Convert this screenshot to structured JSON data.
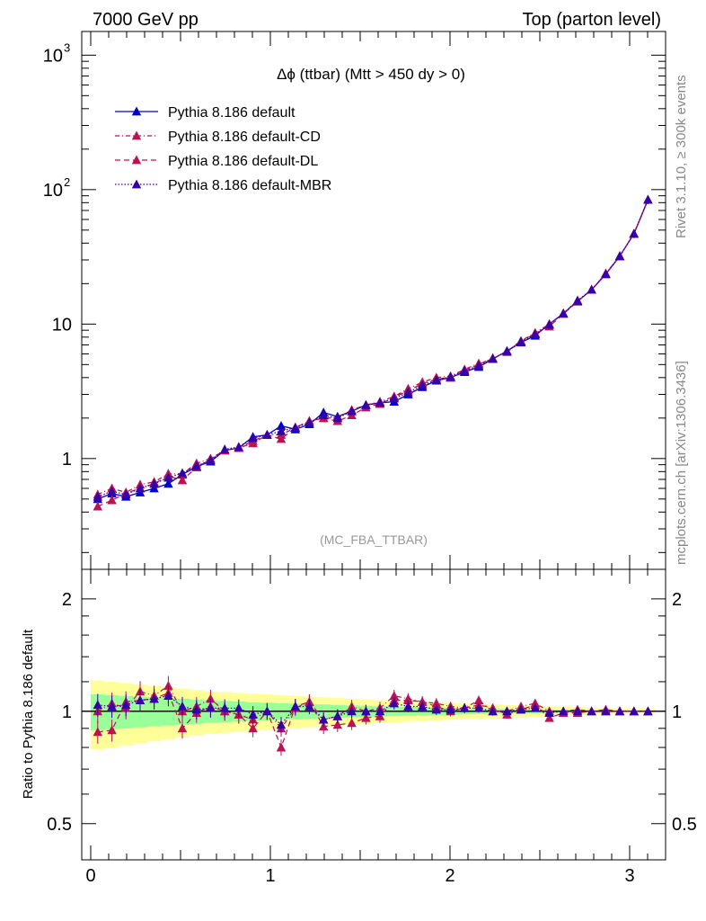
{
  "header": {
    "left": "7000 GeV pp",
    "right": "Top (parton level)"
  },
  "side_labels": {
    "rivet": "Rivet 3.1.10, ≥ 300k events",
    "source": "mcplots.cern.ch [arXiv:1306.3436]"
  },
  "chart_data": [
    {
      "type": "line",
      "panel": "main",
      "title": "Δϕ (ttbar) (Mtt > 450 dy > 0)",
      "watermark": "(MC_FBA_TTBAR)",
      "yscale": "log",
      "ylim": [
        0.15,
        1500
      ],
      "xlim": [
        -0.05,
        3.2
      ],
      "ytick_labels": [
        {
          "value": 1000,
          "mant": "10",
          "exp": "3"
        },
        {
          "value": 100,
          "mant": "10",
          "exp": "2"
        },
        {
          "value": 10,
          "mant": "10",
          "exp": ""
        },
        {
          "value": 1,
          "mant": "1",
          "exp": ""
        }
      ],
      "legend_position": "top-left",
      "x": [
        0.039,
        0.118,
        0.196,
        0.275,
        0.353,
        0.432,
        0.51,
        0.589,
        0.667,
        0.746,
        0.824,
        0.903,
        0.982,
        1.06,
        1.139,
        1.217,
        1.296,
        1.374,
        1.453,
        1.532,
        1.61,
        1.689,
        1.767,
        1.846,
        1.924,
        2.003,
        2.081,
        2.16,
        2.238,
        2.317,
        2.395,
        2.474,
        2.553,
        2.631,
        2.71,
        2.788,
        2.867,
        2.945,
        3.024,
        3.102
      ],
      "series": [
        {
          "name": "Pythia 8.186 default",
          "color": "#0000cc",
          "dash": "",
          "y": [
            0.5,
            0.55,
            0.52,
            0.56,
            0.6,
            0.65,
            0.76,
            0.87,
            0.95,
            1.15,
            1.2,
            1.45,
            1.5,
            1.75,
            1.65,
            1.8,
            2.2,
            2.05,
            2.25,
            2.5,
            2.6,
            2.65,
            3.0,
            3.4,
            3.8,
            4.0,
            4.4,
            4.8,
            5.5,
            6.3,
            7.3,
            8.2,
            10.0,
            12.0,
            14.8,
            18.0,
            23.5,
            32.0,
            47.0,
            84.0
          ]
        },
        {
          "name": "Pythia 8.186 default-CD",
          "color": "#bb1155",
          "dash": "5,3,1,3",
          "y": [
            0.54,
            0.6,
            0.56,
            0.64,
            0.67,
            0.77,
            0.77,
            0.92,
            1.0,
            1.15,
            1.2,
            1.35,
            1.5,
            1.5,
            1.7,
            1.9,
            2.0,
            2.0,
            2.3,
            2.5,
            2.65,
            2.9,
            3.3,
            3.7,
            4.0,
            4.1,
            4.6,
            5.1,
            5.5,
            6.3,
            7.5,
            8.6,
            10.0,
            12.0,
            15.0,
            18.0,
            23.5,
            32.0,
            47.0,
            84.0
          ]
        },
        {
          "name": "Pythia 8.186 default-DL",
          "color": "#bb1155",
          "dash": "6,4",
          "y": [
            0.44,
            0.49,
            0.55,
            0.6,
            0.65,
            0.74,
            0.69,
            0.86,
            0.98,
            1.15,
            1.2,
            1.3,
            1.5,
            1.4,
            1.7,
            1.9,
            2.0,
            1.9,
            2.1,
            2.4,
            2.55,
            2.85,
            3.2,
            3.6,
            3.9,
            4.0,
            4.5,
            5.0,
            5.6,
            6.2,
            7.4,
            8.5,
            9.6,
            11.9,
            14.7,
            18.0,
            23.8,
            32.0,
            47.0,
            84.0
          ]
        },
        {
          "name": "Pythia 8.186 default-MBR",
          "color": "#3300aa",
          "dash": "1.5,2",
          "y": [
            0.52,
            0.57,
            0.54,
            0.6,
            0.65,
            0.72,
            0.78,
            0.88,
            0.97,
            1.17,
            1.22,
            1.42,
            1.5,
            1.6,
            1.7,
            1.85,
            2.1,
            2.0,
            2.25,
            2.5,
            2.6,
            2.8,
            3.1,
            3.5,
            3.85,
            4.05,
            4.5,
            4.9,
            5.5,
            6.3,
            7.4,
            8.4,
            9.9,
            12.0,
            14.9,
            18.0,
            23.6,
            32.0,
            47.0,
            84.0
          ]
        }
      ]
    },
    {
      "type": "line",
      "panel": "ratio",
      "ylabel": "Ratio to Pythia 8.186 default",
      "yscale": "log",
      "ylim": [
        0.4,
        2.4
      ],
      "xlim": [
        -0.05,
        3.2
      ],
      "x": [
        0.039,
        0.118,
        0.196,
        0.275,
        0.353,
        0.432,
        0.51,
        0.589,
        0.667,
        0.746,
        0.824,
        0.903,
        0.982,
        1.06,
        1.139,
        1.217,
        1.296,
        1.374,
        1.453,
        1.532,
        1.61,
        1.689,
        1.767,
        1.846,
        1.924,
        2.003,
        2.081,
        2.16,
        2.238,
        2.317,
        2.395,
        2.474,
        2.553,
        2.631,
        2.71,
        2.788,
        2.867,
        2.945,
        3.024,
        3.102
      ],
      "ytick_labels": [
        {
          "value": 2,
          "label": "2"
        },
        {
          "value": 1,
          "label": "1"
        },
        {
          "value": 0.5,
          "label": "0.5"
        }
      ],
      "xtick_labels": [
        {
          "value": 0,
          "label": "0"
        },
        {
          "value": 1,
          "label": "1"
        },
        {
          "value": 2,
          "label": "2"
        },
        {
          "value": 3,
          "label": "3"
        }
      ],
      "band_yellow_halfwidth": [
        0.21,
        0.2,
        0.19,
        0.18,
        0.17,
        0.16,
        0.15,
        0.14,
        0.13,
        0.125,
        0.12,
        0.115,
        0.11,
        0.105,
        0.1,
        0.095,
        0.09,
        0.085,
        0.08,
        0.075,
        0.07,
        0.066,
        0.062,
        0.058,
        0.055,
        0.052,
        0.049,
        0.046,
        0.043,
        0.04,
        0.037,
        0.034,
        0.031,
        0.028,
        0.025,
        0.022,
        0.02,
        0.018,
        0.016,
        0.014
      ],
      "band_green_halfwidth": [
        0.11,
        0.105,
        0.1,
        0.095,
        0.09,
        0.085,
        0.08,
        0.075,
        0.07,
        0.066,
        0.062,
        0.058,
        0.055,
        0.052,
        0.049,
        0.046,
        0.043,
        0.04,
        0.037,
        0.034,
        0.031,
        0.029,
        0.027,
        0.025,
        0.023,
        0.021,
        0.019,
        0.017,
        0.015,
        0.014,
        0.013,
        0.012,
        0.011,
        0.01,
        0.009,
        0.008,
        0.007,
        0.006,
        0.005,
        0.004
      ],
      "series": [
        {
          "name": "Pythia 8.186 default-CD",
          "color": "#bb1155",
          "dash": "5,3,1,3",
          "y": [
            1.0,
            1.05,
            1.02,
            1.13,
            1.1,
            1.17,
            1.0,
            1.03,
            1.08,
            1.0,
            0.98,
            0.95,
            1.0,
            0.9,
            1.02,
            1.06,
            0.95,
            0.97,
            1.03,
            1.0,
            1.02,
            1.1,
            1.08,
            1.06,
            1.05,
            1.03,
            1.02,
            1.07,
            1.0,
            1.0,
            1.03,
            1.05,
            1.0,
            1.0,
            1.01,
            1.0,
            1.0,
            1.0,
            1.0,
            1.0
          ]
        },
        {
          "name": "Pythia 8.186 default-DL",
          "color": "#bb1155",
          "dash": "6,4",
          "y": [
            0.88,
            0.89,
            1.06,
            1.07,
            1.08,
            1.12,
            0.9,
            0.99,
            1.03,
            1.0,
            0.98,
            0.9,
            1.0,
            0.8,
            1.03,
            1.06,
            0.91,
            0.92,
            0.93,
            0.96,
            0.97,
            1.07,
            1.07,
            1.06,
            1.03,
            1.0,
            1.02,
            1.04,
            1.02,
            0.98,
            1.01,
            1.04,
            0.96,
            0.99,
            0.99,
            1.0,
            1.01,
            1.0,
            1.0,
            1.0
          ]
        },
        {
          "name": "Pythia 8.186 default-MBR",
          "color": "#3300aa",
          "dash": "1.5,2",
          "y": [
            1.04,
            1.03,
            1.04,
            1.07,
            1.08,
            1.1,
            1.03,
            1.01,
            1.02,
            1.02,
            1.02,
            0.98,
            1.0,
            0.92,
            1.03,
            1.03,
            0.95,
            0.97,
            1.0,
            1.0,
            1.0,
            1.05,
            1.03,
            1.03,
            1.01,
            1.01,
            1.02,
            1.02,
            1.0,
            1.0,
            1.01,
            1.02,
            0.99,
            1.0,
            1.0,
            1.0,
            1.0,
            1.0,
            1.0,
            1.0
          ]
        }
      ]
    }
  ]
}
